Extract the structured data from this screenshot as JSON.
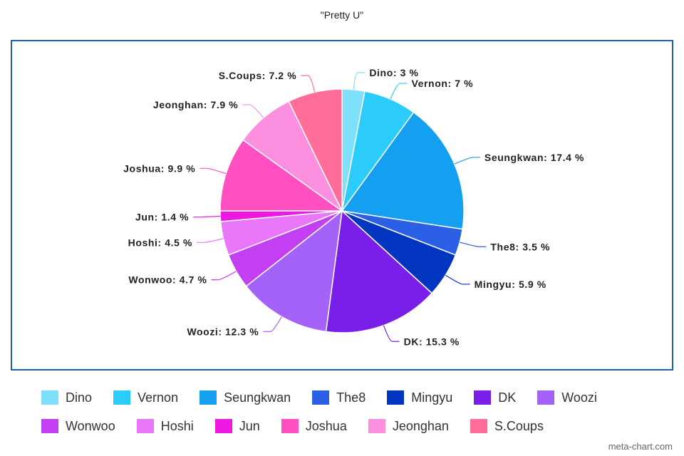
{
  "chart_data": {
    "type": "pie",
    "title": "\"Pretty U\"",
    "categories": [
      "Dino",
      "Vernon",
      "Seungkwan",
      "The8",
      "Mingyu",
      "DK",
      "Woozi",
      "Wonwoo",
      "Hoshi",
      "Jun",
      "Joshua",
      "Jeonghan",
      "S.Coups"
    ],
    "values": [
      3,
      7,
      17.4,
      3.5,
      5.9,
      15.3,
      12.3,
      4.7,
      4.5,
      1.4,
      9.9,
      7.9,
      7.2
    ],
    "labels": [
      "Dino: 3 %",
      "Vernon: 7 %",
      "Seungkwan: 17.4 %",
      "The8: 3.5 %",
      "Mingyu: 5.9 %",
      "DK: 15.3 %",
      "Woozi: 12.3 %",
      "Wonwoo: 4.7 %",
      "Hoshi: 4.5 %",
      "Jun: 1.4 %",
      "Joshua: 9.9 %",
      "Jeonghan: 7.9 %",
      "S.Coups: 7.2 %"
    ],
    "colors": [
      "#7fe0fb",
      "#2bccf9",
      "#149ff0",
      "#2a5fe6",
      "#0235c0",
      "#7a1fea",
      "#a462f8",
      "#c23ff2",
      "#ea77f9",
      "#ee18e3",
      "#ff4fc1",
      "#fc8fdf",
      "#ff6d98"
    ],
    "unit": "%",
    "legend": "bottom"
  },
  "credit": "meta-chart.com"
}
